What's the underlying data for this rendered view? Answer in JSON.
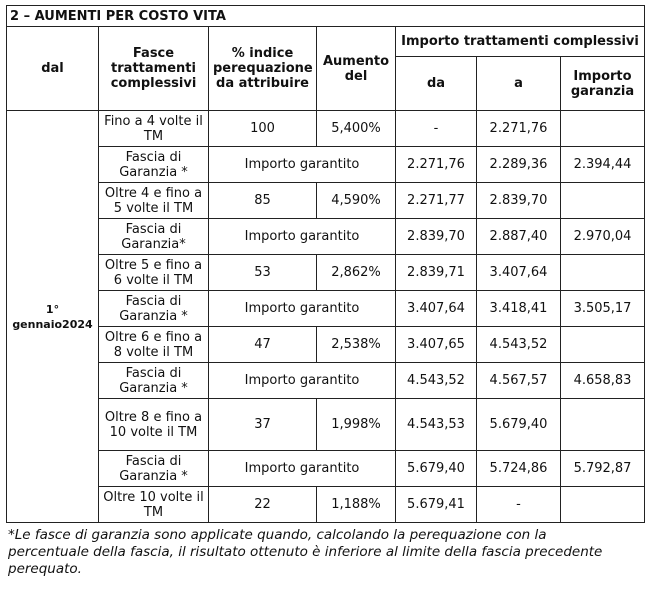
{
  "title": "2 – AUMENTI PER COSTO VITA",
  "headers": {
    "dal": "dal",
    "fasce": "Fasce trattamenti complessivi",
    "indice": "% indice perequazione da attribuire",
    "aumento": "Aumento del",
    "importo": "Importo trattamenti complessivi",
    "da": "da",
    "a": "a",
    "garanzia": "Importo garanzia"
  },
  "date": "1° gennaio2024",
  "rows": [
    {
      "fascia": "Fino a 4 volte il TM",
      "indice": "100",
      "aumento": "5,400%",
      "da": "-",
      "a": "2.271,76"
    },
    {
      "fascia": "Fascia di Garanzia *",
      "garantito": "Importo garantito",
      "da": "2.271,76",
      "a": "2.289,36",
      "garanzia": "2.394,44"
    },
    {
      "fascia": "Oltre 4 e fino a 5 volte il TM",
      "indice": "85",
      "aumento": "4,590%",
      "da": "2.271,77",
      "a": "2.839,70"
    },
    {
      "fascia": "Fascia di Garanzia*",
      "garantito": "Importo garantito",
      "da": "2.839,70",
      "a": "2.887,40",
      "garanzia": "2.970,04"
    },
    {
      "fascia": "Oltre 5 e fino a 6 volte il TM",
      "indice": "53",
      "aumento": "2,862%",
      "da": "2.839,71",
      "a": "3.407,64"
    },
    {
      "fascia": "Fascia di Garanzia *",
      "garantito": "Importo garantito",
      "da": "3.407,64",
      "a": "3.418,41",
      "garanzia": "3.505,17"
    },
    {
      "fascia": "Oltre 6 e fino a 8 volte il TM",
      "indice": "47",
      "aumento": "2,538%",
      "da": "3.407,65",
      "a": "4.543,52"
    },
    {
      "fascia": "Fascia di Garanzia *",
      "garantito": "Importo garantito",
      "da": "4.543,52",
      "a": "4.567,57",
      "garanzia": "4.658,83"
    },
    {
      "fascia": "Oltre 8 e fino a 10 volte il TM",
      "indice": "37",
      "aumento": "1,998%",
      "da": "4.543,53",
      "a": "5.679,40"
    },
    {
      "fascia": "Fascia di Garanzia *",
      "garantito": "Importo garantito",
      "da": "5.679,40",
      "a": "5.724,86",
      "garanzia": "5.792,87"
    },
    {
      "fascia": "Oltre 10 volte il TM",
      "indice": "22",
      "aumento": "1,188%",
      "da": "5.679,41",
      "a": "-"
    }
  ],
  "footnote": "*Le fasce di garanzia sono applicate quando, calcolando la perequazione con la percentuale della fascia, il risultato ottenuto è inferiore al limite della fascia precedente perequato."
}
